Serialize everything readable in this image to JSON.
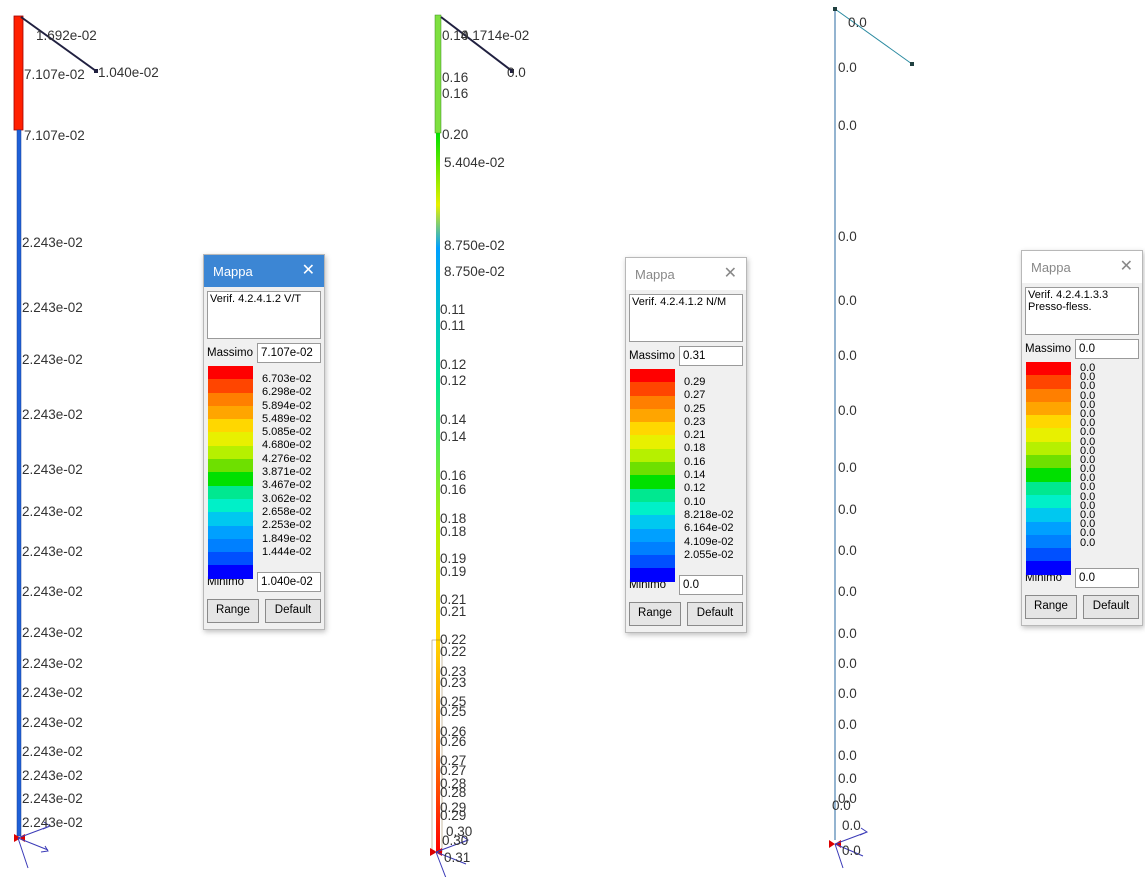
{
  "palette": [
    "#ff0000",
    "#ff4500",
    "#ff7f00",
    "#ffa500",
    "#ffd700",
    "#e8f000",
    "#b6f000",
    "#6ee000",
    "#00e000",
    "#00e890",
    "#00f0c8",
    "#00c8f0",
    "#00a0ff",
    "#0080ff",
    "#0050ff",
    "#0000ff"
  ],
  "models": [
    {
      "labels": [
        "1.692e-02",
        "1.040e-02",
        "7.107e-02",
        "7.107e-02",
        "2.243e-02",
        "2.243e-02",
        "2.243e-02",
        "2.243e-02",
        "2.243e-02",
        "2.243e-02",
        "2.243e-02",
        "2.243e-02",
        "2.243e-02",
        "2.243e-02",
        "2.243e-02",
        "2.243e-02",
        "2.243e-02",
        "2.243e-02",
        "2.243e-02",
        "2.243e-02"
      ]
    },
    {
      "labels": [
        "0.14",
        "0.1714e-02",
        "0.16",
        "0.0",
        "0.16",
        "0.20",
        "5.404e-02",
        "8.750e-02",
        "8.750e-02",
        "0.11",
        "0.11",
        "0.12",
        "0.12",
        "0.14",
        "0.14",
        "0.16",
        "0.16",
        "0.18",
        "0.18",
        "0.19",
        "0.19",
        "0.21",
        "0.21",
        "0.22",
        "0.22",
        "0.23",
        "0.23",
        "0.25",
        "0.25",
        "0.26",
        "0.26",
        "0.27",
        "0.27",
        "0.28",
        "0.28",
        "0.29",
        "0.29",
        "0.30",
        "0.30",
        "0.31"
      ]
    },
    {
      "labels": [
        "0.0",
        "0.0",
        "0.0",
        "0.0",
        "0.0",
        "0.0",
        "0.0",
        "0.0",
        "0.0",
        "0.0",
        "0.0",
        "0.0",
        "0.0",
        "0.0",
        "0.0",
        "0.0",
        "0.0",
        "0.0",
        "0.0",
        "0.0",
        "0.0"
      ]
    }
  ],
  "panels": [
    {
      "title": "Mappa",
      "close_glyph": "✕",
      "description": "Verif. 4.2.4.1.2  V/T",
      "max_label": "Massimo",
      "max_value": "7.107e-02",
      "levels": [
        "6.703e-02",
        "6.298e-02",
        "5.894e-02",
        "5.489e-02",
        "5.085e-02",
        "4.680e-02",
        "4.276e-02",
        "3.871e-02",
        "3.467e-02",
        "3.062e-02",
        "2.658e-02",
        "2.253e-02",
        "1.849e-02",
        "1.444e-02"
      ],
      "min_label": "Minimo",
      "min_value": "1.040e-02",
      "range_label": "Range",
      "default_label": "Default"
    },
    {
      "title": "Mappa",
      "close_glyph": "✕",
      "description": "Verif. 4.2.4.1.2  N/M",
      "max_label": "Massimo",
      "max_value": "0.31",
      "levels": [
        "0.29",
        "0.27",
        "0.25",
        "0.23",
        "0.21",
        "0.18",
        "0.16",
        "0.14",
        "0.12",
        "0.10",
        "8.218e-02",
        "6.164e-02",
        "4.109e-02",
        "2.055e-02"
      ],
      "min_label": "Minimo",
      "min_value": "0.0",
      "range_label": "Range",
      "default_label": "Default"
    },
    {
      "title": "Mappa",
      "close_glyph": "✕",
      "description": "Verif. 4.2.4.1.3.3\nPresso-fless.",
      "max_label": "Massimo",
      "max_value": "0.0",
      "levels": [
        "0.0",
        "0.0",
        "0.0",
        "0.0",
        "0.0",
        "0.0",
        "0.0",
        "0.0",
        "0.0",
        "0.0",
        "0.0",
        "0.0",
        "0.0",
        "0.0",
        "0.0",
        "0.0",
        "0.0",
        "0.0",
        "0.0",
        "0.0"
      ],
      "min_label": "Minimo",
      "min_value": "0.0",
      "range_label": "Range",
      "default_label": "Default"
    }
  ]
}
